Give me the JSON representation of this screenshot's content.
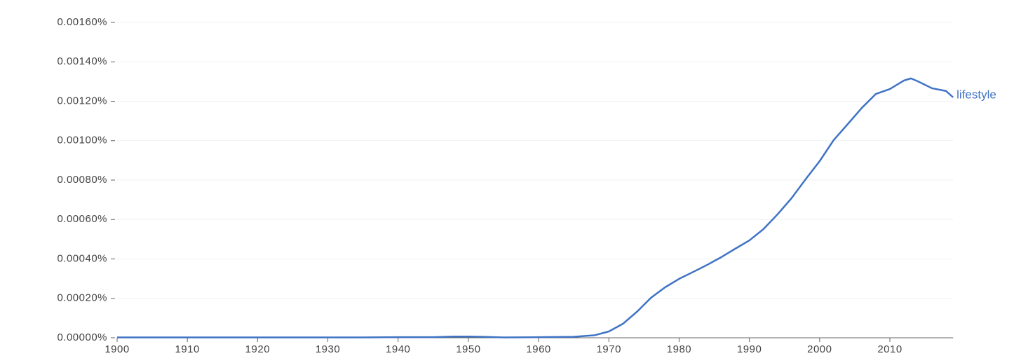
{
  "chart_data": {
    "type": "line",
    "x": [
      1900,
      1905,
      1910,
      1915,
      1920,
      1925,
      1930,
      1935,
      1940,
      1945,
      1948,
      1950,
      1952,
      1955,
      1960,
      1965,
      1968,
      1970,
      1972,
      1974,
      1976,
      1978,
      1980,
      1982,
      1984,
      1986,
      1988,
      1990,
      1992,
      1994,
      1996,
      1998,
      2000,
      2002,
      2004,
      2006,
      2008,
      2010,
      2012,
      2013,
      2014,
      2016,
      2018,
      2019
    ],
    "series": [
      {
        "name": "lifestyle",
        "color": "#3f73c5",
        "values": [
          2e-06,
          2e-06,
          2e-06,
          2e-06,
          2e-06,
          2e-06,
          2e-06,
          2e-06,
          3e-06,
          3e-06,
          6e-06,
          6e-06,
          5e-06,
          2e-06,
          3e-06,
          5e-06,
          1.3e-05,
          3.2e-05,
          7.1e-05,
          0.000132,
          0.000203,
          0.000256,
          0.000299,
          0.000334,
          0.00037,
          0.000409,
          0.000452,
          0.000494,
          0.000551,
          0.000626,
          0.000708,
          0.000804,
          0.000896,
          0.001003,
          0.001084,
          0.001166,
          0.001237,
          0.001262,
          0.001305,
          0.001316,
          0.001301,
          0.001266,
          0.001252,
          0.00122
        ]
      }
    ],
    "xlim": [
      1900,
      2019
    ],
    "xticks": [
      1900,
      1910,
      1920,
      1930,
      1940,
      1950,
      1960,
      1970,
      1980,
      1990,
      2000,
      2010
    ],
    "ylim": [
      0,
      0.0016
    ],
    "yticks": [
      {
        "value": 0,
        "label": "0.00000%"
      },
      {
        "value": 0.0002,
        "label": "0.00020%"
      },
      {
        "value": 0.0004,
        "label": "0.00040%"
      },
      {
        "value": 0.0006,
        "label": "0.00060%"
      },
      {
        "value": 0.0008,
        "label": "0.00080%"
      },
      {
        "value": 0.001,
        "label": "0.00100%"
      },
      {
        "value": 0.0012,
        "label": "0.00120%"
      },
      {
        "value": 0.0014,
        "label": "0.00140%"
      },
      {
        "value": 0.0016,
        "label": "0.00160%"
      }
    ],
    "grid": true
  }
}
